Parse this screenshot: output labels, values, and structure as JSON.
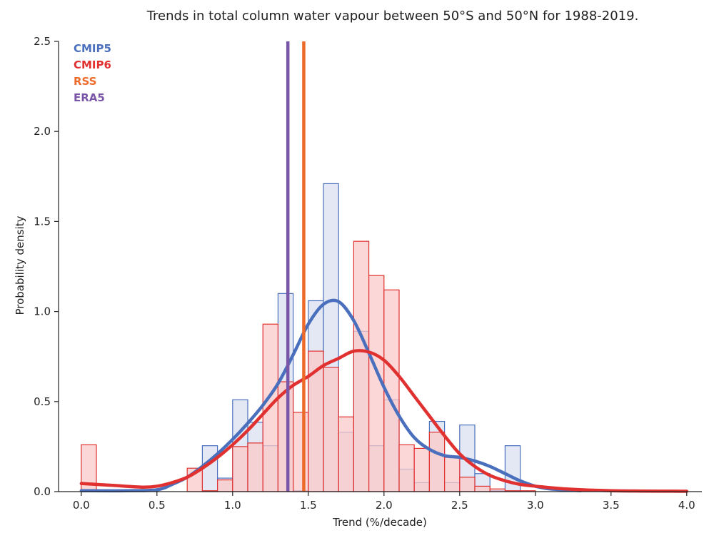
{
  "chart_data": {
    "type": "bar",
    "title": "Trends in total column water vapour between 50°S and 50°N for 1988-2019.",
    "xlabel": "Trend (%/decade)",
    "ylabel": "Probability density",
    "xlim": [
      -0.15,
      4.1
    ],
    "ylim": [
      0,
      2.5
    ],
    "xticks": [
      "0.0",
      "0.5",
      "1.0",
      "1.5",
      "2.0",
      "2.5",
      "3.0",
      "3.5",
      "4.0"
    ],
    "yticks": [
      "0.0",
      "0.5",
      "1.0",
      "1.5",
      "2.0",
      "2.5"
    ],
    "grid": false,
    "legend_position": "top-left",
    "bin_width": 0.1,
    "histograms": [
      {
        "name": "CMIP5",
        "color": "#4a6fbd",
        "fill": "#d9e0f0",
        "bins": [
          [
            0.0,
            0.005
          ],
          [
            0.8,
            0.255
          ],
          [
            0.9,
            0.075
          ],
          [
            1.0,
            0.51
          ],
          [
            1.1,
            0.385
          ],
          [
            1.2,
            0.255
          ],
          [
            1.3,
            1.1
          ],
          [
            1.4,
            0.005
          ],
          [
            1.5,
            1.06
          ],
          [
            1.6,
            1.71
          ],
          [
            1.7,
            0.33
          ],
          [
            1.8,
            0.89
          ],
          [
            1.9,
            0.255
          ],
          [
            2.0,
            0.51
          ],
          [
            2.1,
            0.125
          ],
          [
            2.2,
            0.05
          ],
          [
            2.3,
            0.39
          ],
          [
            2.4,
            0.05
          ],
          [
            2.5,
            0.37
          ],
          [
            2.6,
            0.1
          ],
          [
            2.7,
            0.005
          ],
          [
            2.8,
            0.255
          ]
        ]
      },
      {
        "name": "CMIP6",
        "color": "#e03030",
        "fill": "#fbc9c9",
        "bins": [
          [
            0.0,
            0.26
          ],
          [
            0.7,
            0.13
          ],
          [
            0.8,
            0.005
          ],
          [
            0.9,
            0.065
          ],
          [
            1.0,
            0.25
          ],
          [
            1.1,
            0.27
          ],
          [
            1.2,
            0.93
          ],
          [
            1.3,
            0.61
          ],
          [
            1.4,
            0.44
          ],
          [
            1.5,
            0.78
          ],
          [
            1.6,
            0.69
          ],
          [
            1.7,
            0.415
          ],
          [
            1.8,
            1.39
          ],
          [
            1.9,
            1.2
          ],
          [
            2.0,
            1.12
          ],
          [
            2.1,
            0.26
          ],
          [
            2.2,
            0.24
          ],
          [
            2.3,
            0.33
          ],
          [
            2.4,
            0.19
          ],
          [
            2.5,
            0.08
          ],
          [
            2.6,
            0.03
          ],
          [
            2.7,
            0.015
          ],
          [
            2.8,
            0.005
          ],
          [
            2.9,
            0.005
          ]
        ]
      }
    ],
    "kde": [
      {
        "name": "CMIP5",
        "color": "#4a6fbd",
        "points": [
          [
            0.0,
            0.005
          ],
          [
            0.3,
            0.005
          ],
          [
            0.5,
            0.01
          ],
          [
            0.6,
            0.04
          ],
          [
            0.7,
            0.08
          ],
          [
            0.8,
            0.14
          ],
          [
            0.9,
            0.21
          ],
          [
            1.0,
            0.29
          ],
          [
            1.1,
            0.38
          ],
          [
            1.2,
            0.48
          ],
          [
            1.3,
            0.6
          ],
          [
            1.4,
            0.76
          ],
          [
            1.5,
            0.93
          ],
          [
            1.6,
            1.04
          ],
          [
            1.7,
            1.055
          ],
          [
            1.8,
            0.95
          ],
          [
            1.9,
            0.77
          ],
          [
            2.0,
            0.58
          ],
          [
            2.1,
            0.42
          ],
          [
            2.2,
            0.3
          ],
          [
            2.3,
            0.235
          ],
          [
            2.4,
            0.2
          ],
          [
            2.5,
            0.19
          ],
          [
            2.6,
            0.17
          ],
          [
            2.7,
            0.14
          ],
          [
            2.8,
            0.1
          ],
          [
            2.9,
            0.06
          ],
          [
            3.0,
            0.03
          ],
          [
            3.1,
            0.015
          ],
          [
            3.3,
            0.005
          ]
        ]
      },
      {
        "name": "CMIP6",
        "color": "#e03030",
        "points": [
          [
            0.0,
            0.045
          ],
          [
            0.2,
            0.035
          ],
          [
            0.4,
            0.025
          ],
          [
            0.5,
            0.03
          ],
          [
            0.6,
            0.05
          ],
          [
            0.7,
            0.08
          ],
          [
            0.8,
            0.13
          ],
          [
            0.9,
            0.19
          ],
          [
            1.0,
            0.26
          ],
          [
            1.1,
            0.34
          ],
          [
            1.2,
            0.43
          ],
          [
            1.3,
            0.52
          ],
          [
            1.4,
            0.59
          ],
          [
            1.5,
            0.64
          ],
          [
            1.6,
            0.7
          ],
          [
            1.7,
            0.74
          ],
          [
            1.8,
            0.78
          ],
          [
            1.9,
            0.775
          ],
          [
            2.0,
            0.73
          ],
          [
            2.1,
            0.64
          ],
          [
            2.2,
            0.53
          ],
          [
            2.3,
            0.42
          ],
          [
            2.4,
            0.31
          ],
          [
            2.5,
            0.21
          ],
          [
            2.6,
            0.14
          ],
          [
            2.7,
            0.09
          ],
          [
            2.8,
            0.06
          ],
          [
            2.9,
            0.04
          ],
          [
            3.0,
            0.03
          ],
          [
            3.2,
            0.015
          ],
          [
            3.5,
            0.005
          ],
          [
            4.0,
            0.002
          ]
        ]
      }
    ],
    "vlines": [
      {
        "name": "ERA5",
        "x": 1.365,
        "color": "#7a56a8"
      },
      {
        "name": "RSS",
        "x": 1.47,
        "color": "#ee6a2a"
      }
    ],
    "legend": [
      {
        "label": "CMIP5",
        "color": "#4a6fbd"
      },
      {
        "label": "CMIP6",
        "color": "#e03030"
      },
      {
        "label": "RSS",
        "color": "#ee6a2a"
      },
      {
        "label": "ERA5",
        "color": "#7a56a8"
      }
    ]
  }
}
